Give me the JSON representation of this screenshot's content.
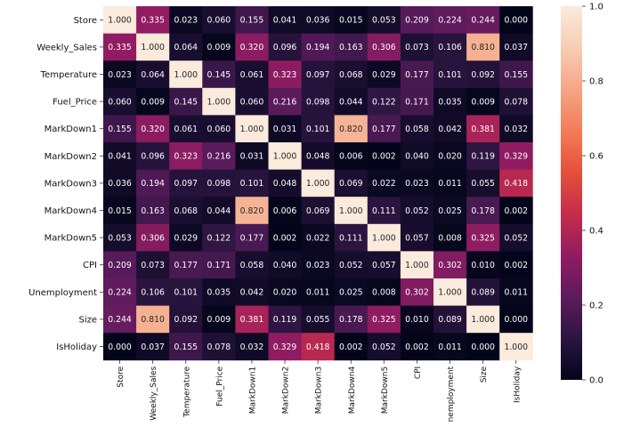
{
  "chart_data": {
    "type": "heatmap",
    "title": "",
    "xlabel": "",
    "ylabel": "",
    "row_labels": [
      "Store",
      "Weekly_Sales",
      "Temperature",
      "Fuel_Price",
      "MarkDown1",
      "MarkDown2",
      "MarkDown3",
      "MarkDown4",
      "MarkDown5",
      "CPI",
      "Unemployment",
      "Size",
      "IsHoliday"
    ],
    "col_labels": [
      "Store",
      "Weekly_Sales",
      "Temperature",
      "Fuel_Price",
      "MarkDown1",
      "MarkDown2",
      "MarkDown3",
      "MarkDown4",
      "MarkDown5",
      "CPI",
      "nemployment",
      "Size",
      "IsHoliday"
    ],
    "values": [
      [
        1.0,
        0.335,
        0.023,
        0.06,
        0.155,
        0.041,
        0.036,
        0.015,
        0.053,
        0.209,
        0.224,
        0.244,
        0.0
      ],
      [
        0.335,
        1.0,
        0.064,
        0.009,
        0.32,
        0.096,
        0.194,
        0.163,
        0.306,
        0.073,
        0.106,
        0.81,
        0.037
      ],
      [
        0.023,
        0.064,
        1.0,
        0.145,
        0.061,
        0.323,
        0.097,
        0.068,
        0.029,
        0.177,
        0.101,
        0.092,
        0.155
      ],
      [
        0.06,
        0.009,
        0.145,
        1.0,
        0.06,
        0.216,
        0.098,
        0.044,
        0.122,
        0.171,
        0.035,
        0.009,
        0.078
      ],
      [
        0.155,
        0.32,
        0.061,
        0.06,
        1.0,
        0.031,
        0.101,
        0.82,
        0.177,
        0.058,
        0.042,
        0.381,
        0.032
      ],
      [
        0.041,
        0.096,
        0.323,
        0.216,
        0.031,
        1.0,
        0.048,
        0.006,
        0.002,
        0.04,
        0.02,
        0.119,
        0.329
      ],
      [
        0.036,
        0.194,
        0.097,
        0.098,
        0.101,
        0.048,
        1.0,
        0.069,
        0.022,
        0.023,
        0.011,
        0.055,
        0.418
      ],
      [
        0.015,
        0.163,
        0.068,
        0.044,
        0.82,
        0.006,
        0.069,
        1.0,
        0.111,
        0.052,
        0.025,
        0.178,
        0.002
      ],
      [
        0.053,
        0.306,
        0.029,
        0.122,
        0.177,
        0.002,
        0.022,
        0.111,
        1.0,
        0.057,
        0.008,
        0.325,
        0.052
      ],
      [
        0.209,
        0.073,
        0.177,
        0.171,
        0.058,
        0.04,
        0.023,
        0.052,
        0.057,
        1.0,
        0.302,
        0.01,
        0.002
      ],
      [
        0.224,
        0.106,
        0.101,
        0.035,
        0.042,
        0.02,
        0.011,
        0.025,
        0.008,
        0.302,
        1.0,
        0.089,
        0.011
      ],
      [
        0.244,
        0.81,
        0.092,
        0.009,
        0.381,
        0.119,
        0.055,
        0.178,
        0.325,
        0.01,
        0.089,
        1.0,
        0.0
      ],
      [
        0.0,
        0.037,
        0.155,
        0.078,
        0.032,
        0.329,
        0.418,
        0.002,
        0.052,
        0.002,
        0.011,
        0.0,
        1.0
      ]
    ],
    "value_format": "0.000",
    "colormap": "rocket",
    "colormap_stops": [
      "#03051a",
      "#2b1540",
      "#5d1b5e",
      "#911c61",
      "#c62c4b",
      "#e64f3b",
      "#f47c58",
      "#f5a585",
      "#f7cdb4",
      "#faebdd"
    ],
    "vmin": 0.0,
    "vmax": 1.0,
    "colorbar_ticks": [
      0.0,
      0.2,
      0.4,
      0.6,
      0.8,
      1.0
    ],
    "colorbar_tick_labels": [
      "0.0",
      "0.2",
      "0.4",
      "0.6",
      "0.8",
      "1.0"
    ],
    "legend": "colorbar-right"
  }
}
